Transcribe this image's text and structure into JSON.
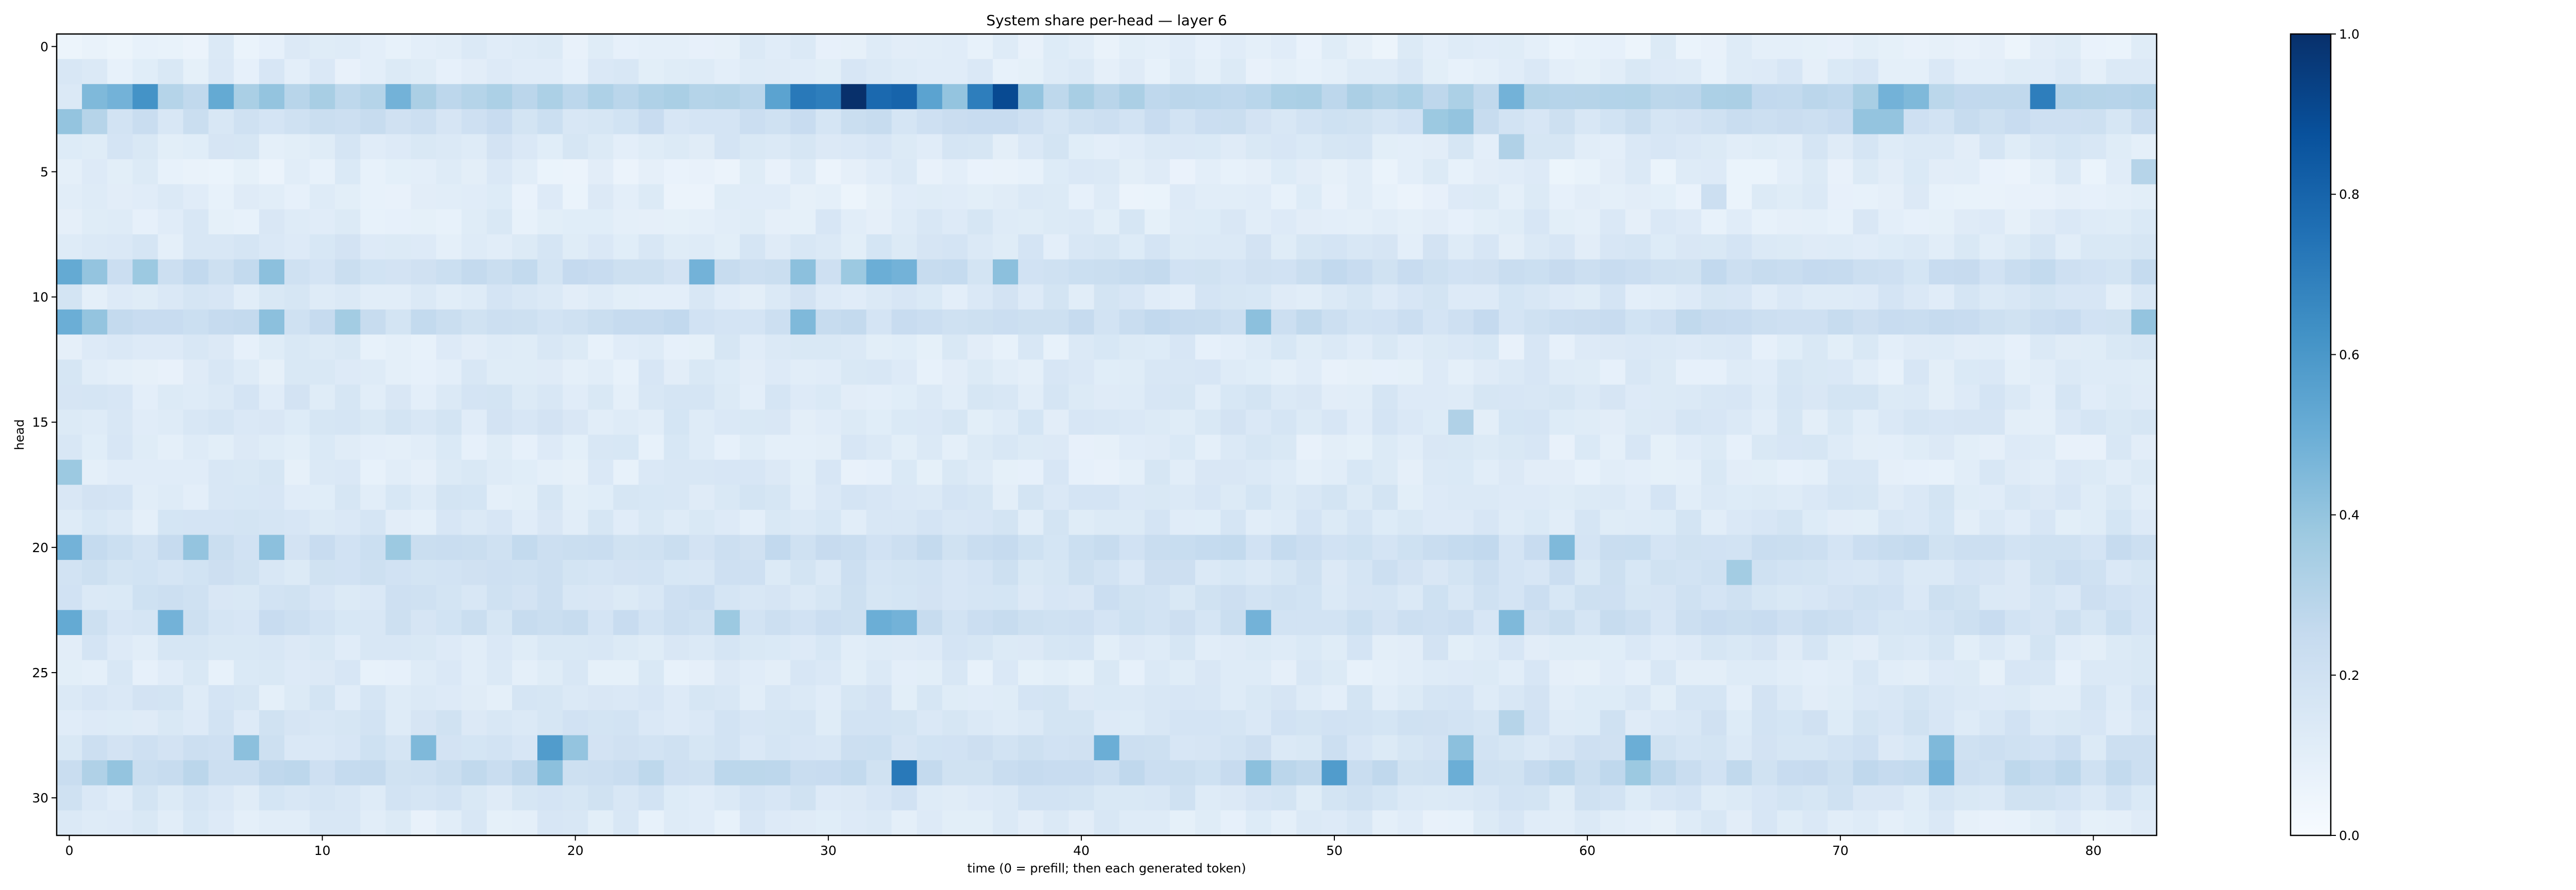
{
  "chart_data": {
    "type": "heatmap",
    "title": "System share per-head — layer 6",
    "xlabel": "time (0 = prefill; then each generated token)",
    "ylabel": "head",
    "x_range": [
      0,
      82
    ],
    "y_range": [
      0,
      31
    ],
    "x_ticks": [
      0,
      10,
      20,
      30,
      40,
      50,
      60,
      70,
      80
    ],
    "y_ticks": [
      0,
      5,
      10,
      15,
      20,
      25,
      30
    ],
    "colormap": "Blues",
    "colorbar": {
      "min": 0.0,
      "max": 1.0,
      "ticks": [
        "0.0",
        "0.2",
        "0.4",
        "0.6",
        "0.8",
        "1.0"
      ]
    },
    "n_cols": 83,
    "rows": [
      {
        "head": 0,
        "base": 0.1,
        "hot": []
      },
      {
        "head": 1,
        "base": 0.12,
        "hot": []
      },
      {
        "head": 2,
        "base": 0.3,
        "hot": [
          [
            0,
            0.14
          ],
          [
            1,
            0.45
          ],
          [
            2,
            0.48
          ],
          [
            3,
            0.62
          ],
          [
            6,
            0.52
          ],
          [
            8,
            0.4
          ],
          [
            13,
            0.48
          ],
          [
            28,
            0.55
          ],
          [
            29,
            0.72
          ],
          [
            30,
            0.7
          ],
          [
            31,
            1.0
          ],
          [
            32,
            0.78
          ],
          [
            33,
            0.8
          ],
          [
            34,
            0.55
          ],
          [
            35,
            0.4
          ],
          [
            36,
            0.7
          ],
          [
            37,
            0.9
          ],
          [
            38,
            0.4
          ],
          [
            57,
            0.48
          ],
          [
            72,
            0.48
          ],
          [
            73,
            0.45
          ],
          [
            78,
            0.7
          ]
        ]
      },
      {
        "head": 3,
        "base": 0.2,
        "hot": [
          [
            0,
            0.4
          ],
          [
            1,
            0.3
          ],
          [
            54,
            0.38
          ],
          [
            55,
            0.4
          ],
          [
            71,
            0.4
          ],
          [
            72,
            0.4
          ]
        ]
      },
      {
        "head": 4,
        "base": 0.14,
        "hot": [
          [
            57,
            0.32
          ]
        ]
      },
      {
        "head": 5,
        "base": 0.1,
        "hot": [
          [
            82,
            0.3
          ]
        ]
      },
      {
        "head": 6,
        "base": 0.1,
        "hot": [
          [
            65,
            0.22
          ]
        ]
      },
      {
        "head": 7,
        "base": 0.12,
        "hot": []
      },
      {
        "head": 8,
        "base": 0.14,
        "hot": []
      },
      {
        "head": 9,
        "base": 0.22,
        "hot": [
          [
            0,
            0.52
          ],
          [
            1,
            0.4
          ],
          [
            3,
            0.38
          ],
          [
            8,
            0.42
          ],
          [
            25,
            0.48
          ],
          [
            29,
            0.42
          ],
          [
            31,
            0.38
          ],
          [
            32,
            0.5
          ],
          [
            33,
            0.48
          ],
          [
            37,
            0.42
          ]
        ]
      },
      {
        "head": 10,
        "base": 0.14,
        "hot": []
      },
      {
        "head": 11,
        "base": 0.22,
        "hot": [
          [
            0,
            0.5
          ],
          [
            1,
            0.4
          ],
          [
            8,
            0.42
          ],
          [
            11,
            0.36
          ],
          [
            29,
            0.45
          ],
          [
            47,
            0.42
          ],
          [
            82,
            0.4
          ]
        ]
      },
      {
        "head": 12,
        "base": 0.12,
        "hot": []
      },
      {
        "head": 13,
        "base": 0.12,
        "hot": []
      },
      {
        "head": 14,
        "base": 0.14,
        "hot": []
      },
      {
        "head": 15,
        "base": 0.14,
        "hot": [
          [
            55,
            0.32
          ]
        ]
      },
      {
        "head": 16,
        "base": 0.12,
        "hot": []
      },
      {
        "head": 17,
        "base": 0.12,
        "hot": [
          [
            0,
            0.38
          ]
        ]
      },
      {
        "head": 18,
        "base": 0.14,
        "hot": []
      },
      {
        "head": 19,
        "base": 0.14,
        "hot": []
      },
      {
        "head": 20,
        "base": 0.22,
        "hot": [
          [
            0,
            0.48
          ],
          [
            5,
            0.4
          ],
          [
            8,
            0.42
          ],
          [
            13,
            0.38
          ],
          [
            59,
            0.45
          ]
        ]
      },
      {
        "head": 21,
        "base": 0.18,
        "hot": [
          [
            66,
            0.36
          ]
        ]
      },
      {
        "head": 22,
        "base": 0.18,
        "hot": []
      },
      {
        "head": 23,
        "base": 0.2,
        "hot": [
          [
            0,
            0.52
          ],
          [
            4,
            0.48
          ],
          [
            26,
            0.38
          ],
          [
            32,
            0.5
          ],
          [
            33,
            0.48
          ],
          [
            47,
            0.48
          ],
          [
            57,
            0.45
          ]
        ]
      },
      {
        "head": 24,
        "base": 0.14,
        "hot": []
      },
      {
        "head": 25,
        "base": 0.12,
        "hot": []
      },
      {
        "head": 26,
        "base": 0.14,
        "hot": []
      },
      {
        "head": 27,
        "base": 0.16,
        "hot": [
          [
            57,
            0.3
          ]
        ]
      },
      {
        "head": 28,
        "base": 0.18,
        "hot": [
          [
            7,
            0.42
          ],
          [
            14,
            0.45
          ],
          [
            19,
            0.58
          ],
          [
            20,
            0.4
          ],
          [
            41,
            0.5
          ],
          [
            55,
            0.42
          ],
          [
            62,
            0.5
          ],
          [
            74,
            0.45
          ]
        ]
      },
      {
        "head": 29,
        "base": 0.24,
        "hot": [
          [
            1,
            0.32
          ],
          [
            2,
            0.4
          ],
          [
            19,
            0.42
          ],
          [
            33,
            0.72
          ],
          [
            47,
            0.42
          ],
          [
            50,
            0.58
          ],
          [
            55,
            0.5
          ],
          [
            62,
            0.38
          ],
          [
            74,
            0.48
          ]
        ]
      },
      {
        "head": 30,
        "base": 0.16,
        "hot": []
      },
      {
        "head": 31,
        "base": 0.12,
        "hot": []
      }
    ]
  }
}
